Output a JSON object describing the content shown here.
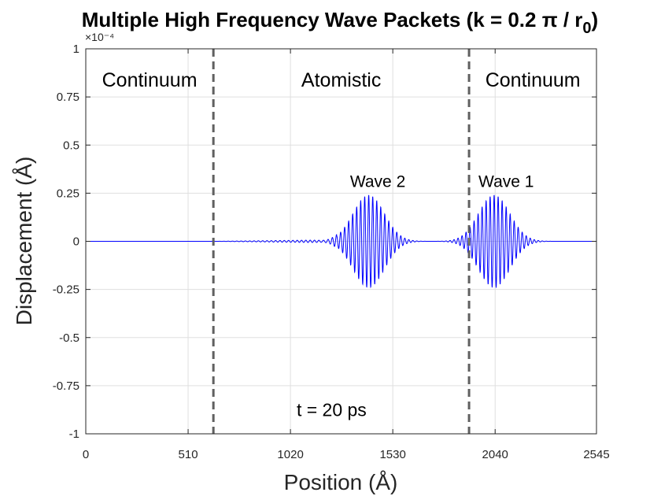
{
  "chart_data": {
    "type": "line",
    "title": "Multiple High Frequency Wave Packets (k = 0.2 π / r",
    "title_subscript": "0",
    "title_suffix": ")",
    "xlabel": "Position (Å)",
    "ylabel": "Displacement (Å)",
    "xlim": [
      0,
      2545
    ],
    "ylim": [
      -1,
      1
    ],
    "y_scale_exponent": "×10⁻⁴",
    "x_ticks": [
      0,
      510,
      1020,
      1530,
      2040,
      2545
    ],
    "x_tick_labels": [
      "0",
      "510",
      "1020",
      "1530",
      "2040",
      "2545"
    ],
    "y_ticks": [
      1,
      0.75,
      0.5,
      0.25,
      0,
      -0.25,
      -0.5,
      -0.75,
      -1
    ],
    "y_tick_labels": [
      "1",
      "0.75",
      "0.5",
      "0.25",
      "0",
      "-0.25",
      "-0.5",
      "-0.75",
      "-1"
    ],
    "grid": true,
    "series": [
      {
        "name": "displacement",
        "color": "#0000ff",
        "packets": [
          {
            "name": "Wave 2",
            "center": 1410,
            "amplitude": 0.24,
            "width": 110
          },
          {
            "name": "Wave 1",
            "center": 2035,
            "amplitude": 0.24,
            "width": 110
          }
        ],
        "wavelength": 20,
        "tail_amplitude": 0.008,
        "tail_start": 640,
        "tail_end": 1250
      }
    ],
    "interfaces": [
      {
        "x": 636,
        "style": "dashed",
        "color": "#606060"
      },
      {
        "x": 1910,
        "style": "dashed",
        "color": "#606060"
      }
    ],
    "region_labels": [
      {
        "text": "Continuum",
        "x": 318,
        "y": 0.84
      },
      {
        "text": "Atomistic",
        "x": 1273,
        "y": 0.84
      },
      {
        "text": "Continuum",
        "x": 2228,
        "y": 0.84
      }
    ],
    "annotations": [
      {
        "text": "Wave 2",
        "x": 1455,
        "y": 0.31
      },
      {
        "text": "Wave 1",
        "x": 2095,
        "y": 0.31
      },
      {
        "text": "t = 20 ps",
        "x": 1225,
        "y": -0.88
      }
    ]
  }
}
